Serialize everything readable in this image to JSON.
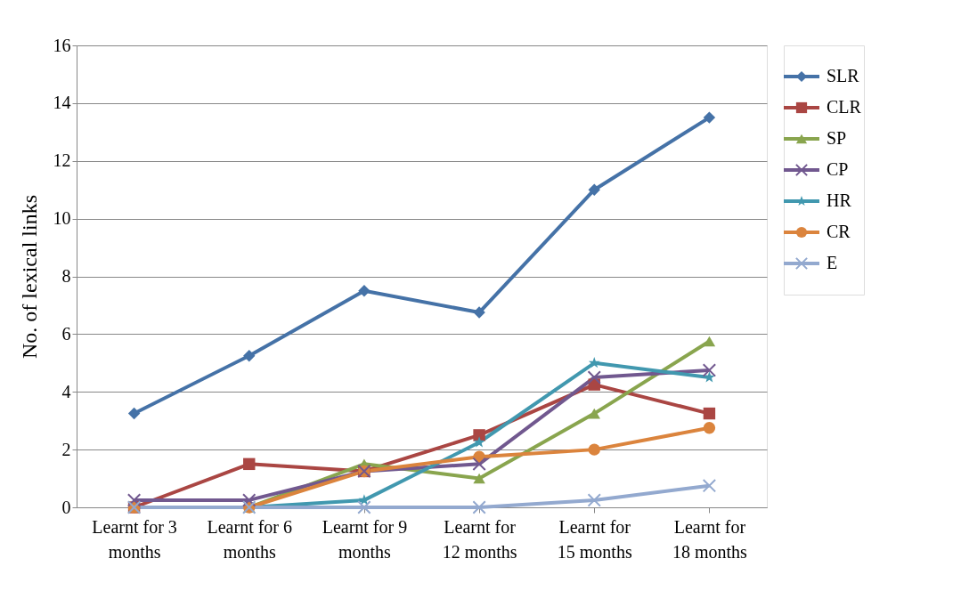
{
  "chart_data": {
    "type": "line",
    "ylabel": "No. of lexical links",
    "categories": [
      "Learnt for 3 months",
      "Learnt for 6 months",
      "Learnt for 9 months",
      "Learnt for 12 months",
      "Learnt for 15 months",
      "Learnt for 18 months"
    ],
    "series": [
      {
        "name": "SLR",
        "color": "#4572a7",
        "marker": "diamond",
        "values": [
          3.25,
          5.25,
          7.5,
          6.75,
          11,
          13.5
        ]
      },
      {
        "name": "CLR",
        "color": "#aa4643",
        "marker": "square",
        "values": [
          0,
          1.5,
          1.25,
          2.5,
          4.25,
          3.25
        ]
      },
      {
        "name": "SP",
        "color": "#89a54e",
        "marker": "triangle",
        "values": [
          0,
          0,
          1.5,
          1,
          3.25,
          5.75
        ]
      },
      {
        "name": "CP",
        "color": "#71588f",
        "marker": "cross",
        "values": [
          0.25,
          0.25,
          1.25,
          1.5,
          4.5,
          4.75
        ]
      },
      {
        "name": "HR",
        "color": "#4198af",
        "marker": "star",
        "values": [
          0,
          0,
          0.25,
          2.25,
          5,
          4.5
        ]
      },
      {
        "name": "CR",
        "color": "#db843d",
        "marker": "circle",
        "values": [
          0,
          0,
          1.25,
          1.75,
          2,
          2.75
        ]
      },
      {
        "name": "E",
        "color": "#93a9cf",
        "marker": "cross",
        "values": [
          0,
          0,
          0,
          0,
          0.25,
          0.75
        ]
      }
    ],
    "ylim": [
      0,
      16
    ],
    "yticks": [
      0,
      2,
      4,
      6,
      8,
      10,
      12,
      14,
      16
    ],
    "grid": "y",
    "legend": "right",
    "line_style": "solid"
  }
}
